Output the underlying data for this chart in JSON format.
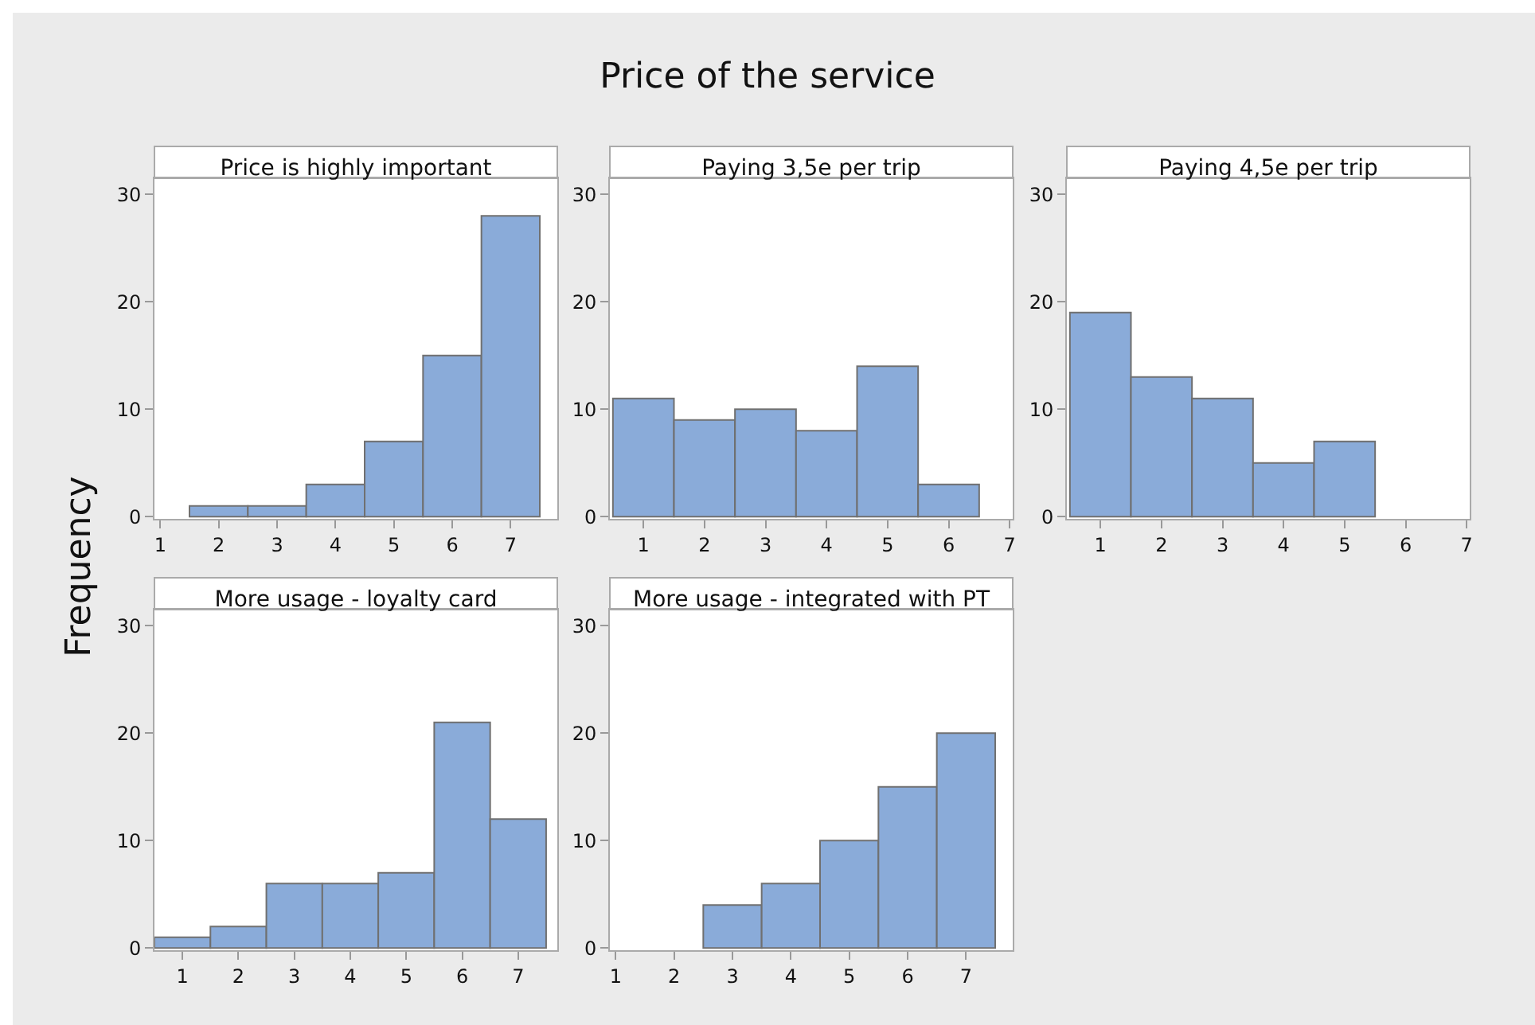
{
  "chart_data": [
    {
      "type": "histogram",
      "title": "Price is highly important",
      "ylabel": "Frequency",
      "annotations": [
        "Price of the service"
      ],
      "bins": [
        1.5,
        2.5,
        3.5,
        4.5,
        5.5,
        6.5,
        7.5
      ],
      "values": [
        1,
        1,
        3,
        7,
        15,
        28
      ],
      "color": "#8aabd9",
      "xlim": [
        0.9,
        7.8
      ],
      "xticks": [
        1,
        2,
        3,
        4,
        5,
        6,
        7
      ],
      "ylim": [
        -0.2,
        31.5
      ],
      "yticks": [
        0,
        10,
        20,
        30
      ],
      "grid": false
    },
    {
      "type": "histogram",
      "title": "Paying 3,5e per trip",
      "bins": [
        0.5,
        1.5,
        2.5,
        3.5,
        4.5,
        5.5,
        6.5
      ],
      "values": [
        11,
        9,
        10,
        8,
        14,
        3
      ],
      "color": "#8aabd9",
      "xlim": [
        0.45,
        7.05
      ],
      "xticks": [
        1,
        2,
        3,
        4,
        5,
        6,
        7
      ],
      "ylim": [
        -0.2,
        31.5
      ],
      "yticks": [
        0,
        10,
        20,
        30
      ],
      "grid": false
    },
    {
      "type": "histogram",
      "title": "Paying 4,5e per trip",
      "bins": [
        0.5,
        1.5,
        2.5,
        3.5,
        4.5,
        5.5
      ],
      "values": [
        19,
        13,
        11,
        5,
        7
      ],
      "color": "#8aabd9",
      "xlim": [
        0.45,
        7.05
      ],
      "xticks": [
        1,
        2,
        3,
        4,
        5,
        6,
        7
      ],
      "ylim": [
        -0.2,
        31.5
      ],
      "yticks": [
        0,
        10,
        20,
        30
      ],
      "grid": false
    },
    {
      "type": "histogram",
      "title": "More usage - loyalty card",
      "bins": [
        0.5,
        1.5,
        2.5,
        3.5,
        4.5,
        5.5,
        6.5,
        7.5
      ],
      "values": [
        1,
        2,
        6,
        6,
        7,
        21,
        12
      ],
      "color": "#8aabd9",
      "xlim": [
        0.5,
        7.7
      ],
      "xticks": [
        1,
        2,
        3,
        4,
        5,
        6,
        7
      ],
      "ylim": [
        -0.2,
        31.5
      ],
      "yticks": [
        0,
        10,
        20,
        30
      ],
      "grid": false
    },
    {
      "type": "histogram",
      "title": "More usage - integrated with PT",
      "bins": [
        2.5,
        3.5,
        4.5,
        5.5,
        6.5,
        7.5
      ],
      "values": [
        4,
        6,
        10,
        15,
        20
      ],
      "color": "#8aabd9",
      "xlim": [
        0.9,
        7.8
      ],
      "xticks": [
        1,
        2,
        3,
        4,
        5,
        6,
        7
      ],
      "ylim": [
        -0.2,
        31.5
      ],
      "yticks": [
        0,
        10,
        20,
        30
      ],
      "grid": false
    }
  ]
}
